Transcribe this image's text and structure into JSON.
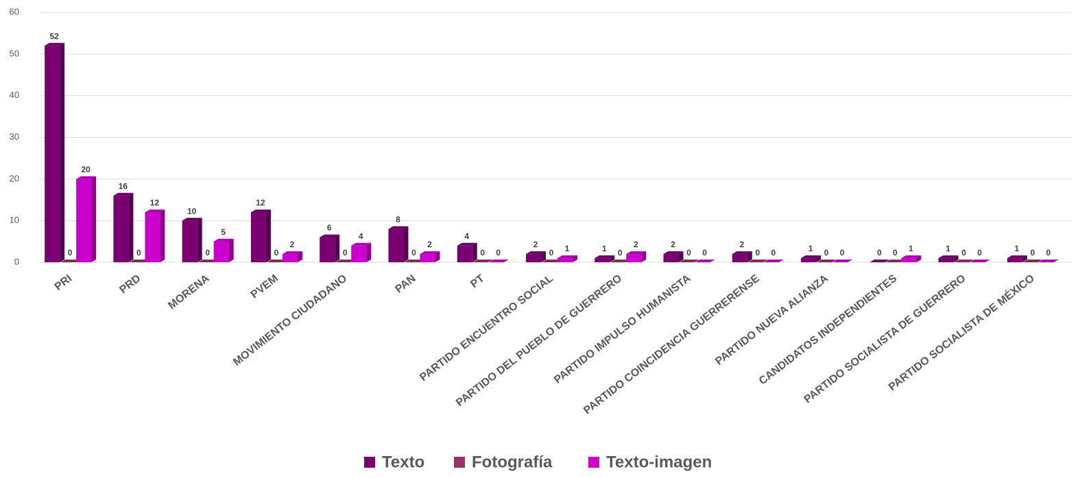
{
  "chart_data": {
    "type": "bar",
    "categories": [
      "PRI",
      "PRD",
      "MORENA",
      "PVEM",
      "MOVIMIENTO CIUDADANO",
      "PAN",
      "PT",
      "PARTIDO ENCUENTRO SOCIAL",
      "PARTIDO DEL PUEBLO DE GUERRERO",
      "PARTIDO IMPULSO HUMANISTA",
      "PARTIDO COINCIDENCIA GUERRERENSE",
      "PARTIDO NUEVA ALIANZA",
      "CANDIDATOS INDEPENDIENTES",
      "PARTIDO SOCIALISTA DE GUERRERO",
      "PARTIDO SOCIALISTA DE MÉXICO"
    ],
    "series": [
      {
        "name": "Texto",
        "color": "#7a0072",
        "values": [
          52,
          16,
          10,
          12,
          6,
          8,
          4,
          2,
          1,
          2,
          2,
          1,
          0,
          1,
          1
        ]
      },
      {
        "name": "Fotografía",
        "color": "#993366",
        "values": [
          0,
          0,
          0,
          0,
          0,
          0,
          0,
          0,
          0,
          0,
          0,
          0,
          0,
          0,
          0
        ]
      },
      {
        "name": "Texto-imagen",
        "color": "#cc00cc",
        "values": [
          20,
          12,
          5,
          2,
          4,
          2,
          0,
          1,
          2,
          0,
          0,
          0,
          1,
          0,
          0
        ]
      }
    ],
    "ylim": [
      0,
      60
    ],
    "yticks": [
      0,
      10,
      20,
      30,
      40,
      50,
      60
    ],
    "grid": true,
    "legend": "bottom"
  }
}
